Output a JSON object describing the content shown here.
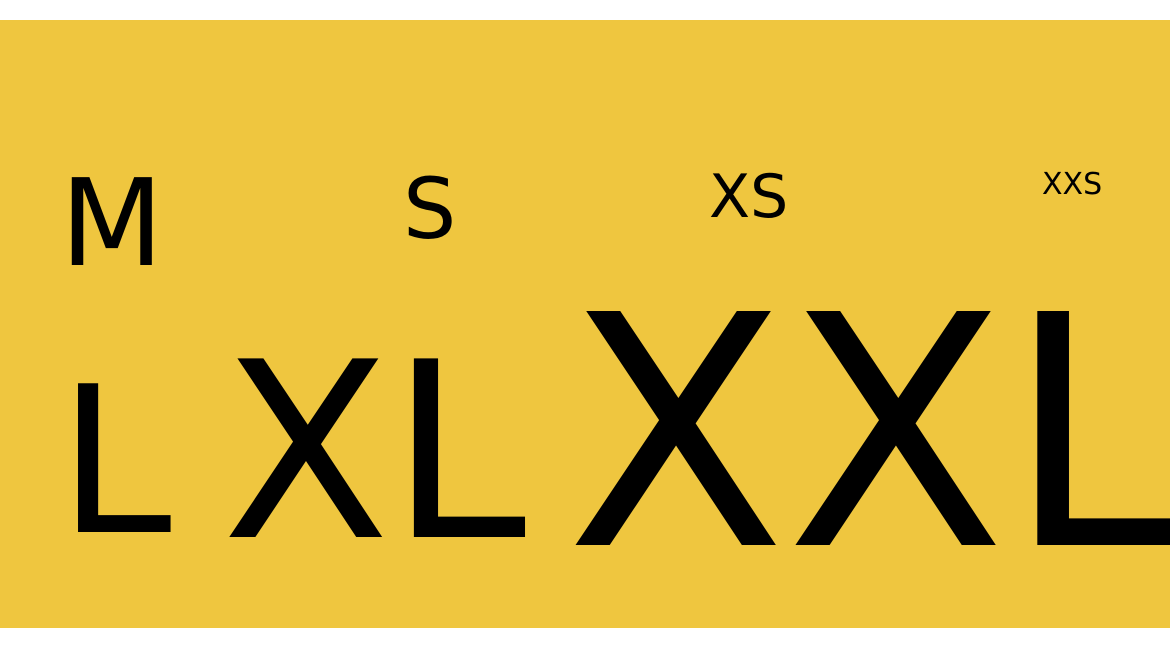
{
  "background_color": "#efc63f",
  "text_color": "#000000",
  "sizes": {
    "m": "M",
    "s": "S",
    "xs": "XS",
    "xxs": "XXS",
    "l": "L",
    "xl": "XL",
    "xxl": "XXL"
  }
}
